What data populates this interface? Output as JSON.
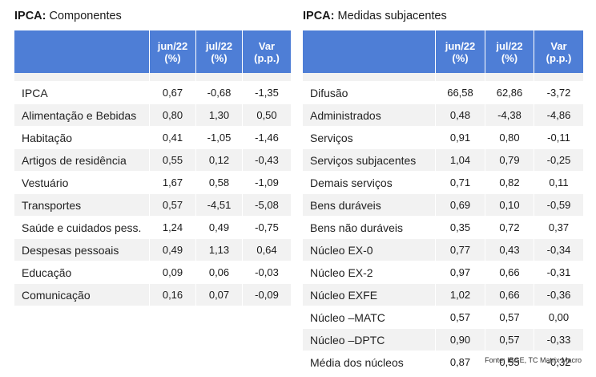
{
  "left": {
    "title_bold": "IPCA:",
    "title_rest": " Componentes",
    "headers": [
      [
        "jun/22",
        "(%)"
      ],
      [
        "jul/22",
        "(%)"
      ],
      [
        "Var",
        "(p.p.)"
      ]
    ],
    "rows": [
      {
        "label": "IPCA",
        "jun": "0,67",
        "jul": "-0,68",
        "var": "-1,35"
      },
      {
        "label": "Alimentação e Bebidas",
        "jun": "0,80",
        "jul": "1,30",
        "var": "0,50"
      },
      {
        "label": "Habitação",
        "jun": "0,41",
        "jul": "-1,05",
        "var": "-1,46"
      },
      {
        "label": "Artigos de residência",
        "jun": "0,55",
        "jul": "0,12",
        "var": "-0,43"
      },
      {
        "label": "Vestuário",
        "jun": "1,67",
        "jul": "0,58",
        "var": "-1,09"
      },
      {
        "label": "Transportes",
        "jun": "0,57",
        "jul": "-4,51",
        "var": "-5,08"
      },
      {
        "label": "Saúde e cuidados pess.",
        "jun": "1,24",
        "jul": "0,49",
        "var": "-0,75"
      },
      {
        "label": "Despesas pessoais",
        "jun": "0,49",
        "jul": "1,13",
        "var": "0,64"
      },
      {
        "label": "Educação",
        "jun": "0,09",
        "jul": "0,06",
        "var": "-0,03"
      },
      {
        "label": "Comunicação",
        "jun": "0,16",
        "jul": "0,07",
        "var": "-0,09"
      }
    ]
  },
  "right": {
    "title_bold": "IPCA:",
    "title_rest": " Medidas subjacentes",
    "headers": [
      [
        "jun/22",
        "(%)"
      ],
      [
        "jul/22",
        "(%)"
      ],
      [
        "Var",
        "(p.p.)"
      ]
    ],
    "rows": [
      {
        "label": "Difusão",
        "jun": "66,58",
        "jul": "62,86",
        "var": "-3,72"
      },
      {
        "label": "Administrados",
        "jun": "0,48",
        "jul": "-4,38",
        "var": "-4,86"
      },
      {
        "label": "Serviços",
        "jun": "0,91",
        "jul": "0,80",
        "var": "-0,11"
      },
      {
        "label": "Serviços subjacentes",
        "jun": "1,04",
        "jul": "0,79",
        "var": "-0,25"
      },
      {
        "label": "Demais serviços",
        "jun": "0,71",
        "jul": "0,82",
        "var": "0,11"
      },
      {
        "label": "Bens duráveis",
        "jun": "0,69",
        "jul": "0,10",
        "var": "-0,59"
      },
      {
        "label": "Bens não duráveis",
        "jun": "0,35",
        "jul": "0,72",
        "var": "0,37"
      },
      {
        "label": "Núcleo EX-0",
        "jun": "0,77",
        "jul": "0,43",
        "var": "-0,34"
      },
      {
        "label": "Núcleo EX-2",
        "jun": "0,97",
        "jul": "0,66",
        "var": "-0,31"
      },
      {
        "label": "Núcleo EXFE",
        "jun": "1,02",
        "jul": "0,66",
        "var": "-0,36"
      },
      {
        "label": "Núcleo –MATC",
        "jun": "0,57",
        "jul": "0,57",
        "var": "0,00"
      },
      {
        "label": "Núcleo –DPTC",
        "jun": "0,90",
        "jul": "0,57",
        "var": "-0,33"
      },
      {
        "label": "Média dos núcleos",
        "jun": "0,87",
        "jul": "0,55",
        "var": "-0,32"
      }
    ]
  },
  "source": "Fonte: IBGE, TC Matrix  Macro",
  "colors": {
    "header_bg": "#4e7ed6",
    "row_shade": "#f2f2f2",
    "header_text": "#ffffff"
  }
}
